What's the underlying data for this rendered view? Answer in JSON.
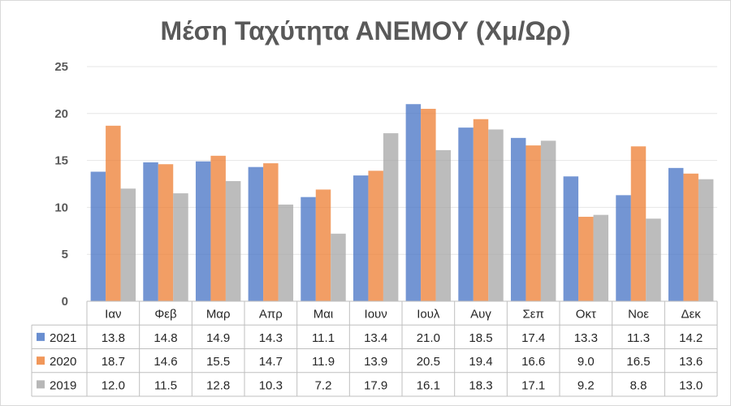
{
  "chart_data": {
    "type": "bar",
    "title": "Μέση Ταχύτητα ΑΝΕΜΟΥ (Χμ/Ωρ)",
    "categories": [
      "Ιαν",
      "Φεβ",
      "Μαρ",
      "Απρ",
      "Μαι",
      "Ιουν",
      "Ιουλ",
      "Αυγ",
      "Σεπ",
      "Οκτ",
      "Νοε",
      "Δεκ"
    ],
    "series": [
      {
        "name": "2021",
        "color": "#4472C4",
        "values": [
          13.8,
          14.8,
          14.9,
          14.3,
          11.1,
          13.4,
          21.0,
          18.5,
          17.4,
          13.3,
          11.3,
          14.2
        ]
      },
      {
        "name": "2020",
        "color": "#ED7D31",
        "values": [
          18.7,
          14.6,
          15.5,
          14.7,
          11.9,
          13.9,
          20.5,
          19.4,
          16.6,
          9.0,
          16.5,
          13.6
        ]
      },
      {
        "name": "2019",
        "color": "#A5A5A5",
        "values": [
          12.0,
          11.5,
          12.8,
          10.3,
          7.2,
          17.9,
          16.1,
          18.3,
          17.1,
          9.2,
          8.8,
          13.0
        ]
      }
    ],
    "ylim": [
      0,
      25
    ],
    "yticks": [
      "0",
      "5",
      "10",
      "15",
      "20",
      "25"
    ],
    "grid": true,
    "legend": "data-table",
    "data_table": true
  }
}
